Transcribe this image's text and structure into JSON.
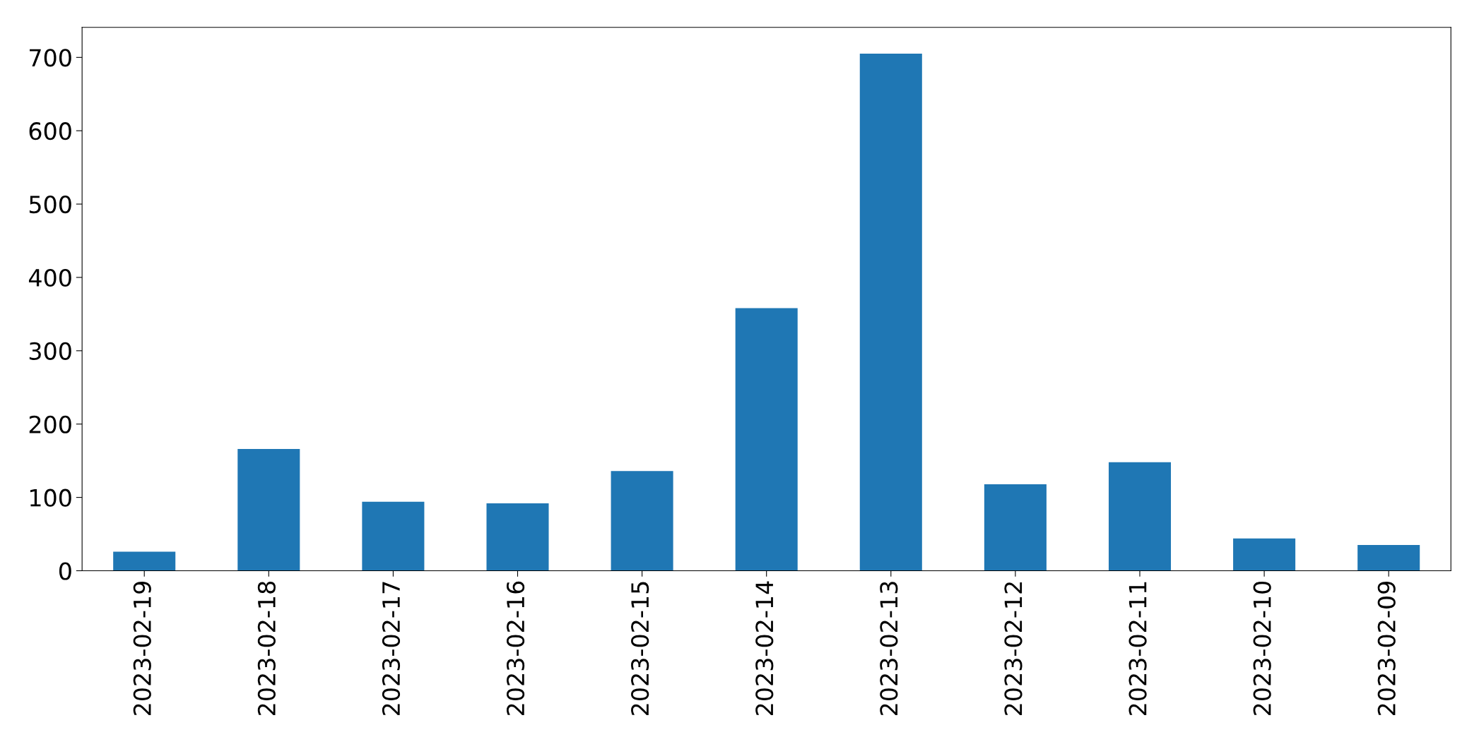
{
  "chart_data": {
    "type": "bar",
    "categories": [
      "2023-02-19",
      "2023-02-18",
      "2023-02-17",
      "2023-02-16",
      "2023-02-15",
      "2023-02-14",
      "2023-02-13",
      "2023-02-12",
      "2023-02-11",
      "2023-02-10",
      "2023-02-09"
    ],
    "values": [
      26,
      166,
      94,
      92,
      136,
      358,
      705,
      118,
      148,
      44,
      35
    ],
    "color": "#1f77b4",
    "ylim": [
      0,
      741
    ],
    "yticks": [
      0,
      100,
      200,
      300,
      400,
      500,
      600,
      700
    ],
    "grid": false,
    "legend": false
  }
}
